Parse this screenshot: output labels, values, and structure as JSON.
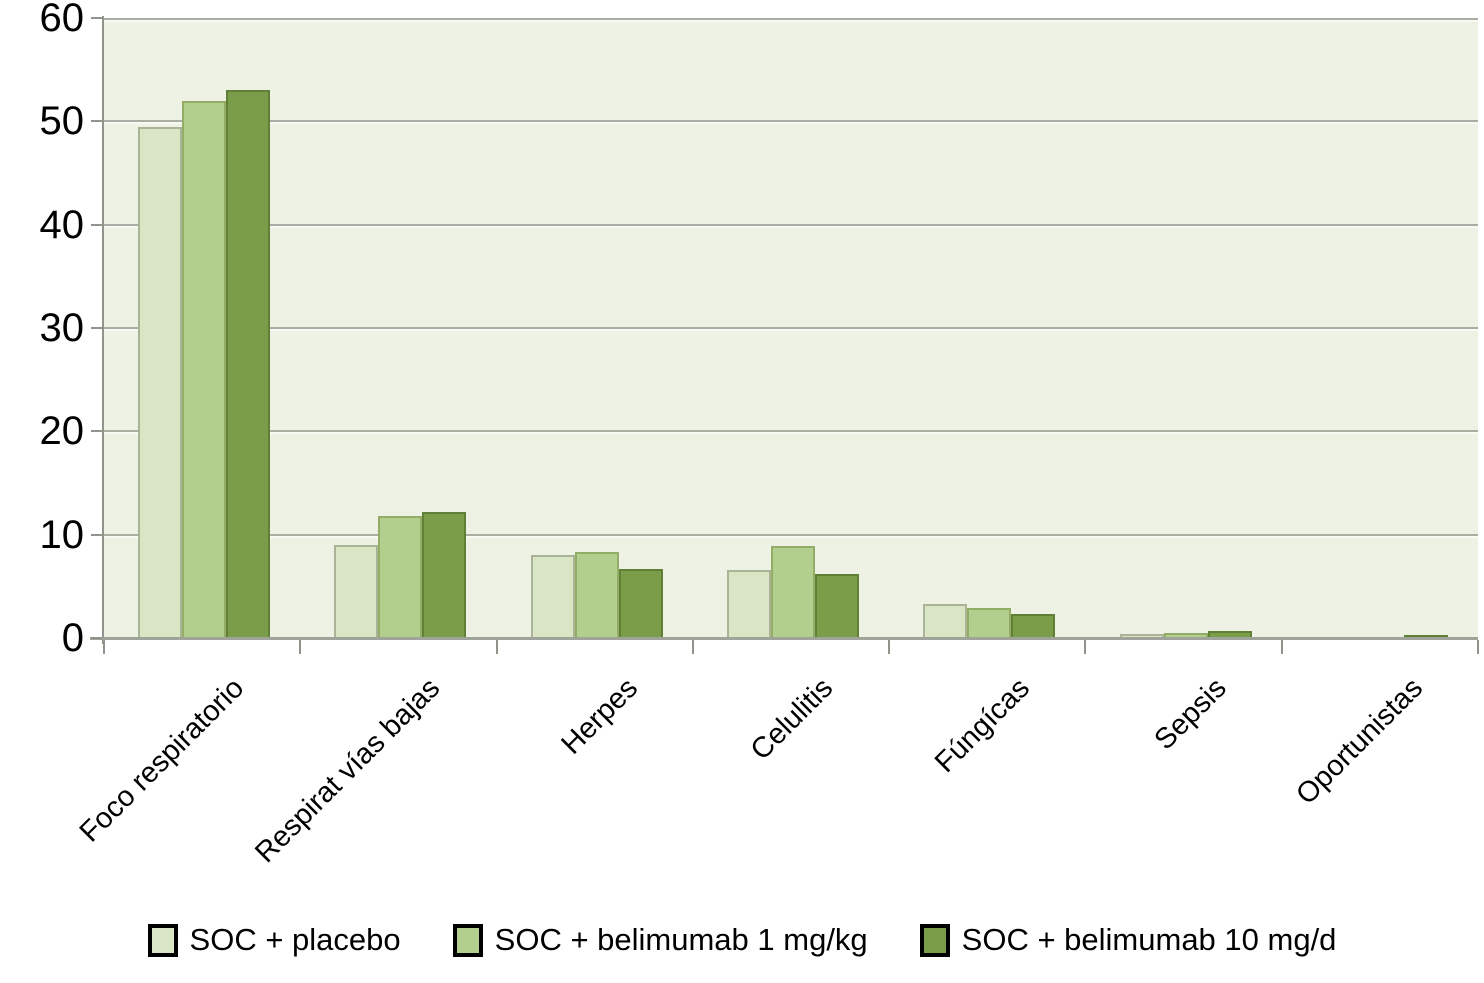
{
  "chart_data": {
    "type": "bar",
    "title": "",
    "xlabel": "",
    "ylabel": "",
    "categories": [
      "Foco respiratorio",
      "Respirat vías bajas",
      "Herpes",
      "Celulitis",
      "Fúngícas",
      "Sepsis",
      "Oportunistas"
    ],
    "series": [
      {
        "name": "SOC + placebo",
        "color": "#d9e5c4",
        "border_color": "#a9b395",
        "values": [
          49.5,
          9,
          8,
          6.6,
          3.3,
          0.4,
          0
        ]
      },
      {
        "name": "SOC + belimumab 1 mg/kg",
        "color": "#b3cf8d",
        "border_color": "#93ad67",
        "values": [
          52,
          11.8,
          8.3,
          8.9,
          2.9,
          0.5,
          0
        ]
      },
      {
        "name": "SOC + belimumab 10 mg/d",
        "color": "#7a9d49",
        "border_color": "#627f38",
        "values": [
          53,
          12.2,
          6.7,
          6.2,
          2.3,
          0.7,
          0.3
        ]
      }
    ],
    "ylim": [
      0,
      60
    ],
    "yticks": [
      0,
      10,
      20,
      30,
      40,
      50,
      60
    ],
    "grid": "horizontal-major",
    "legend_position": "bottom",
    "plot_background": "#edf2e4",
    "grid_color": "#a9ada3",
    "axis_color": "#8f958b",
    "text_color": "#000000"
  }
}
